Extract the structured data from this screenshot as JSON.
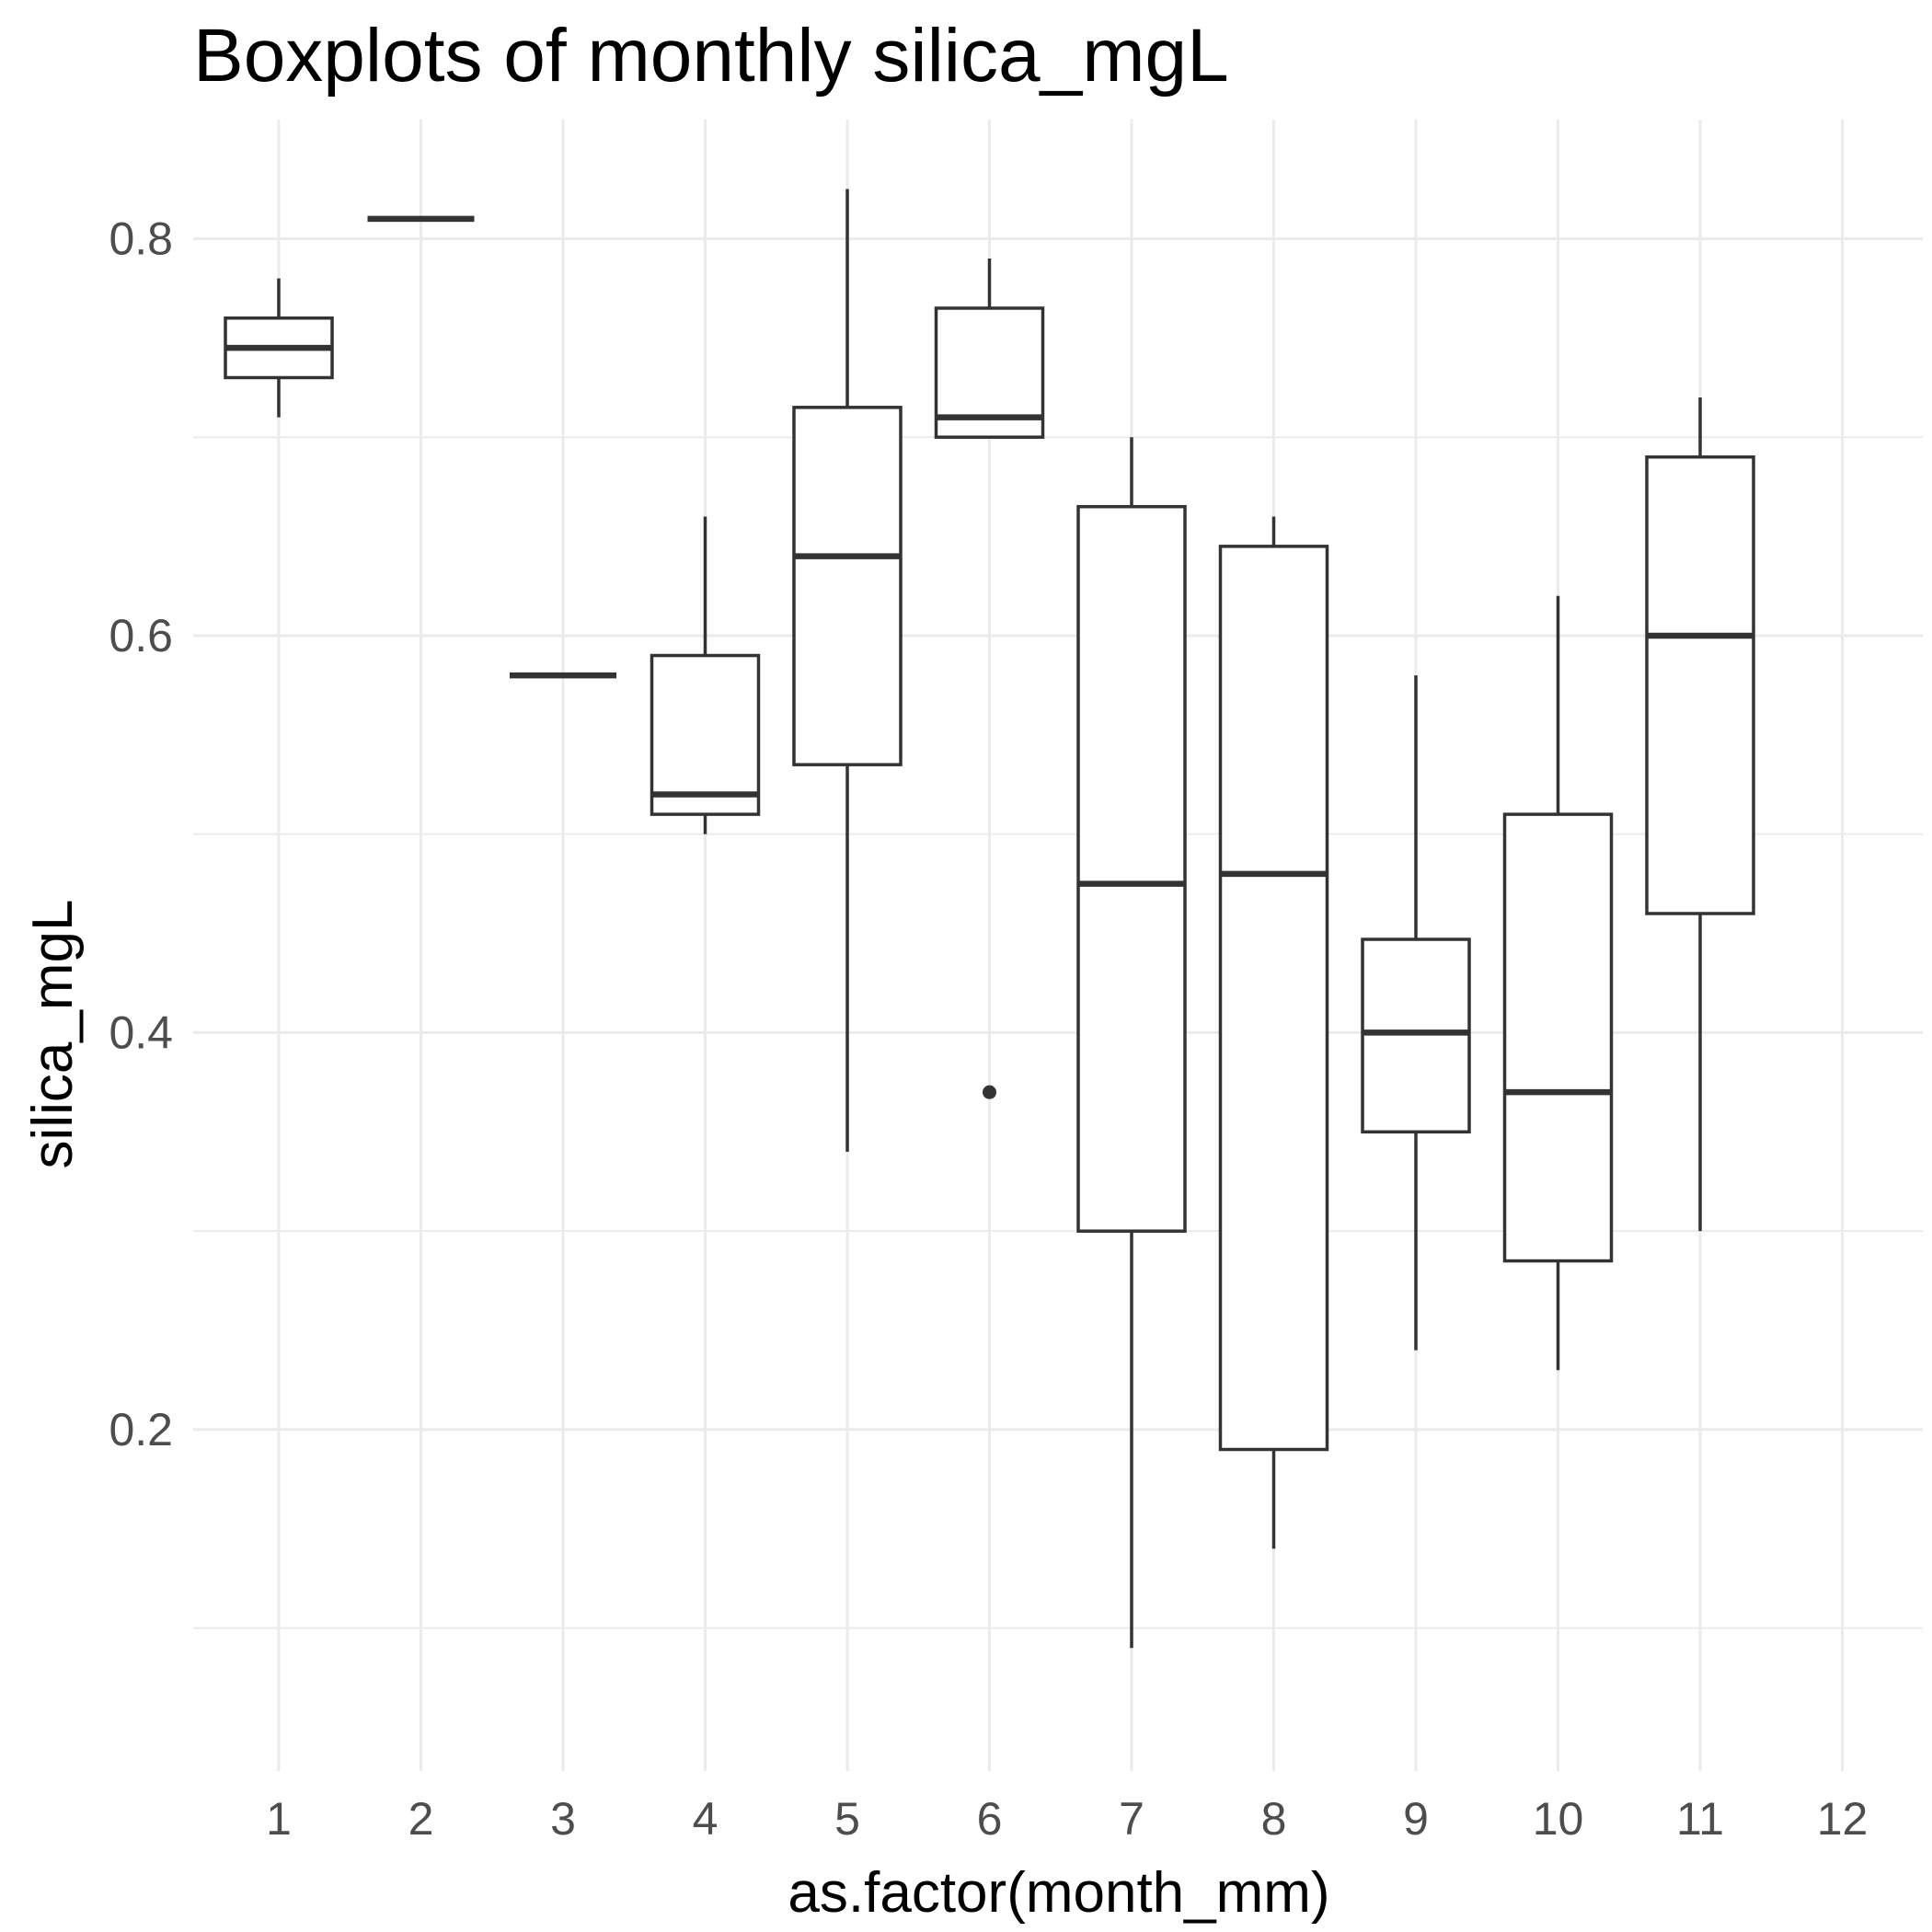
{
  "chart_data": {
    "type": "boxplot",
    "title": "Boxplots of monthly silica_mgL",
    "xlabel": "as.factor(month_mm)",
    "ylabel": "silica_mgL",
    "categories": [
      "1",
      "2",
      "3",
      "4",
      "5",
      "6",
      "7",
      "8",
      "9",
      "10",
      "11",
      "12"
    ],
    "y_ticks": [
      "0.2",
      "0.4",
      "0.6",
      "0.8"
    ],
    "y_tick_values": [
      0.2,
      0.4,
      0.6,
      0.8
    ],
    "ylim": [
      0.028,
      0.86
    ],
    "grid": true,
    "boxes": [
      {
        "category": "1",
        "min": 0.71,
        "q1": 0.73,
        "median": 0.745,
        "q3": 0.76,
        "max": 0.78,
        "outliers": []
      },
      {
        "category": "2",
        "min": 0.81,
        "q1": 0.81,
        "median": 0.81,
        "q3": 0.81,
        "max": 0.81,
        "outliers": []
      },
      {
        "category": "3",
        "min": 0.58,
        "q1": 0.58,
        "median": 0.58,
        "q3": 0.58,
        "max": 0.58,
        "outliers": []
      },
      {
        "category": "4",
        "min": 0.5,
        "q1": 0.51,
        "median": 0.52,
        "q3": 0.59,
        "max": 0.66,
        "outliers": []
      },
      {
        "category": "5",
        "min": 0.34,
        "q1": 0.535,
        "median": 0.64,
        "q3": 0.715,
        "max": 0.825,
        "outliers": []
      },
      {
        "category": "6",
        "min": 0.7,
        "q1": 0.7,
        "median": 0.71,
        "q3": 0.765,
        "max": 0.79,
        "outliers": [
          0.37
        ]
      },
      {
        "category": "7",
        "min": 0.09,
        "q1": 0.3,
        "median": 0.475,
        "q3": 0.665,
        "max": 0.7,
        "outliers": []
      },
      {
        "category": "8",
        "min": 0.14,
        "q1": 0.19,
        "median": 0.48,
        "q3": 0.645,
        "max": 0.66,
        "outliers": []
      },
      {
        "category": "9",
        "min": 0.24,
        "q1": 0.35,
        "median": 0.4,
        "q3": 0.447,
        "max": 0.58,
        "outliers": []
      },
      {
        "category": "10",
        "min": 0.23,
        "q1": 0.285,
        "median": 0.37,
        "q3": 0.51,
        "max": 0.62,
        "outliers": []
      },
      {
        "category": "11",
        "min": 0.3,
        "q1": 0.46,
        "median": 0.6,
        "q3": 0.69,
        "max": 0.72,
        "outliers": []
      },
      {
        "category": "12",
        "min": null,
        "q1": null,
        "median": null,
        "q3": null,
        "max": null,
        "outliers": []
      }
    ]
  }
}
